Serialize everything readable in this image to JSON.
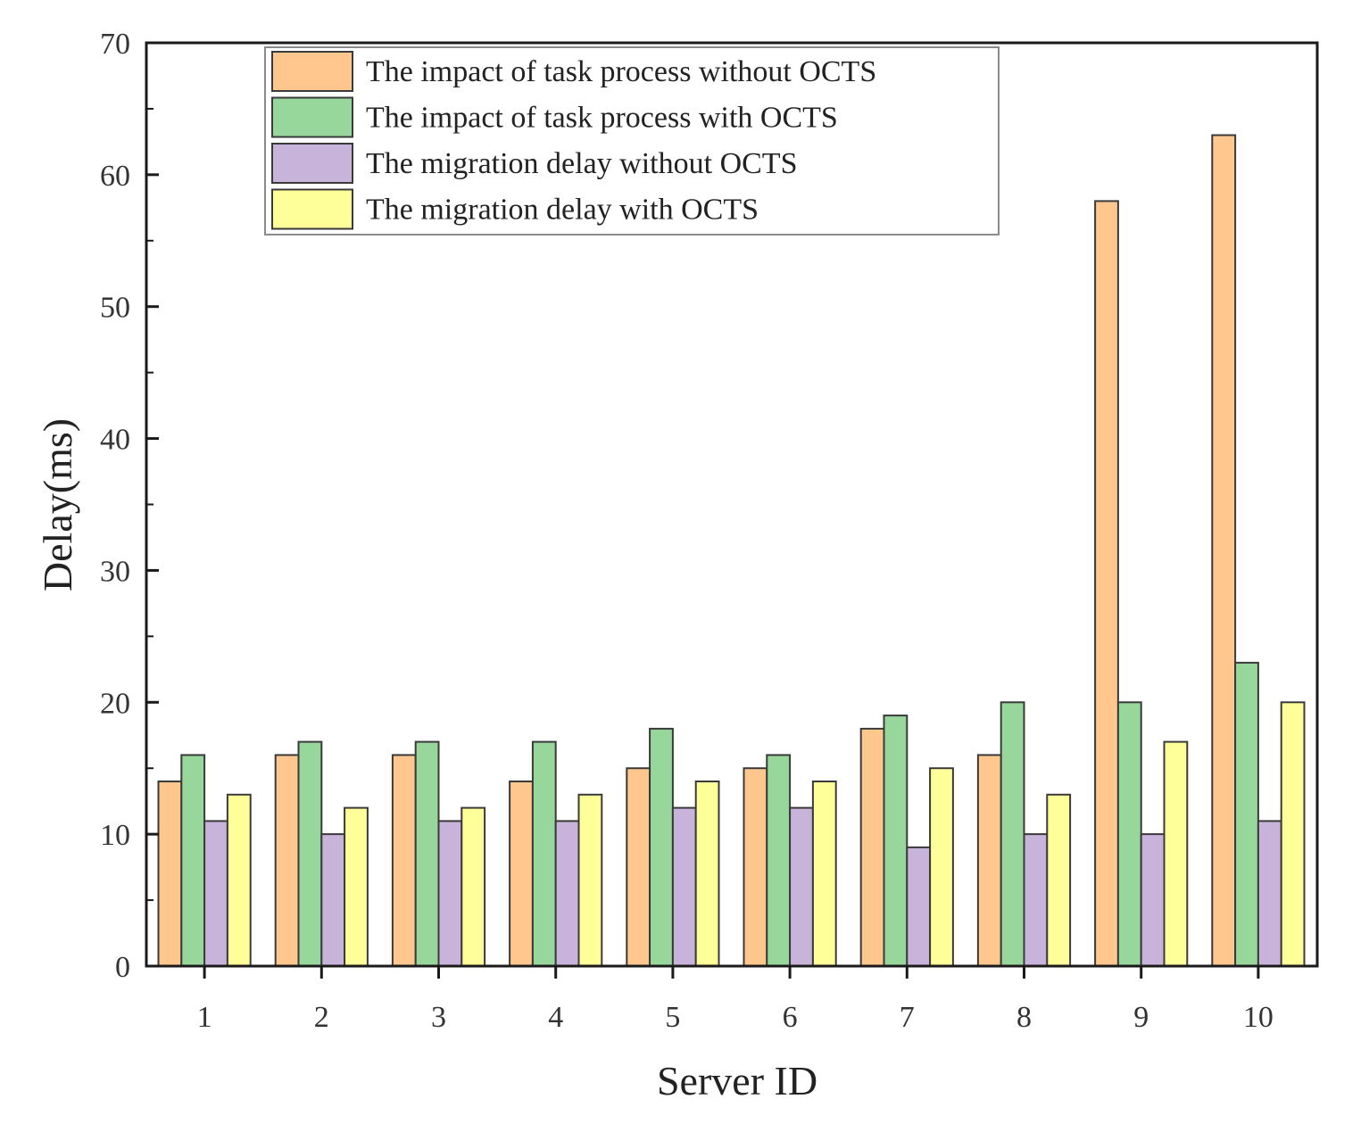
{
  "chart_data": {
    "type": "bar",
    "title": "",
    "xlabel": "Server ID",
    "ylabel": "Delay(ms)",
    "ylim": [
      0,
      70
    ],
    "yticks": [
      "0",
      "10",
      "20",
      "30",
      "40",
      "50",
      "60",
      "70"
    ],
    "grid": false,
    "legend_position": "top-left",
    "categories": [
      "1",
      "2",
      "3",
      "4",
      "5",
      "6",
      "7",
      "8",
      "9",
      "10"
    ],
    "series": [
      {
        "name": "The impact of task process without OCTS",
        "color": "#FFC68E",
        "values": [
          14,
          16,
          16,
          14,
          15,
          15,
          18,
          16,
          58,
          63
        ]
      },
      {
        "name": "The impact of task process with OCTS",
        "color": "#98D79B",
        "values": [
          16,
          17,
          17,
          17,
          18,
          16,
          19,
          20,
          20,
          23
        ]
      },
      {
        "name": "The migration delay without OCTS",
        "color": "#C8B3DA",
        "values": [
          11,
          10,
          11,
          11,
          12,
          12,
          9,
          10,
          10,
          11
        ]
      },
      {
        "name": "The migration delay with OCTS",
        "color": "#FFFF99",
        "values": [
          13,
          12,
          12,
          13,
          14,
          14,
          15,
          13,
          17,
          20
        ]
      }
    ]
  }
}
